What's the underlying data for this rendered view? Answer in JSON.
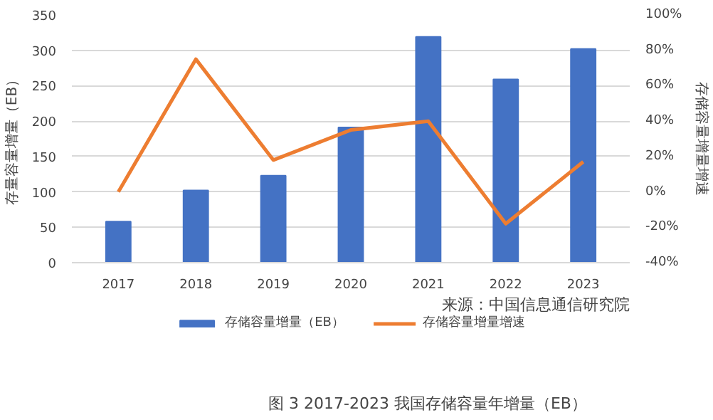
{
  "chart_data": {
    "type": "bar",
    "title": "图 3 2017-2023 我国存储容量年增量（EB）",
    "categories": [
      "2017",
      "2018",
      "2019",
      "2020",
      "2021",
      "2022",
      "2023"
    ],
    "series": [
      {
        "name": "存储容量增量（EB）",
        "color": "#4472c4",
        "values": [
          58,
          102,
          123,
          191,
          319,
          259,
          302
        ]
      },
      {
        "name": "存储容量增量增速",
        "type": "line",
        "axis": "y2",
        "color": "#ed7d31",
        "values": [
          0,
          75,
          18,
          35,
          40,
          -18,
          17
        ]
      }
    ],
    "ylabel": "存量容量增量（EB）",
    "y2label": "存储容量增量增速",
    "ylim": [
      0,
      350
    ],
    "yticks": [
      0,
      50,
      100,
      150,
      200,
      250,
      300,
      350
    ],
    "y2lim": [
      -40,
      100
    ],
    "y2ticks": [
      {
        "value": -40,
        "label": "-40%"
      },
      {
        "value": -20,
        "label": "-20%"
      },
      {
        "value": 0,
        "label": "0%"
      },
      {
        "value": 20,
        "label": "20%"
      },
      {
        "value": 40,
        "label": "40%"
      },
      {
        "value": 60,
        "label": "60%"
      },
      {
        "value": 80,
        "label": "80%"
      },
      {
        "value": 100,
        "label": "100%"
      }
    ],
    "grid": "y",
    "legend": "bottom",
    "marker": "none",
    "annotations": [
      "来源：中国信息通信研究院"
    ]
  }
}
